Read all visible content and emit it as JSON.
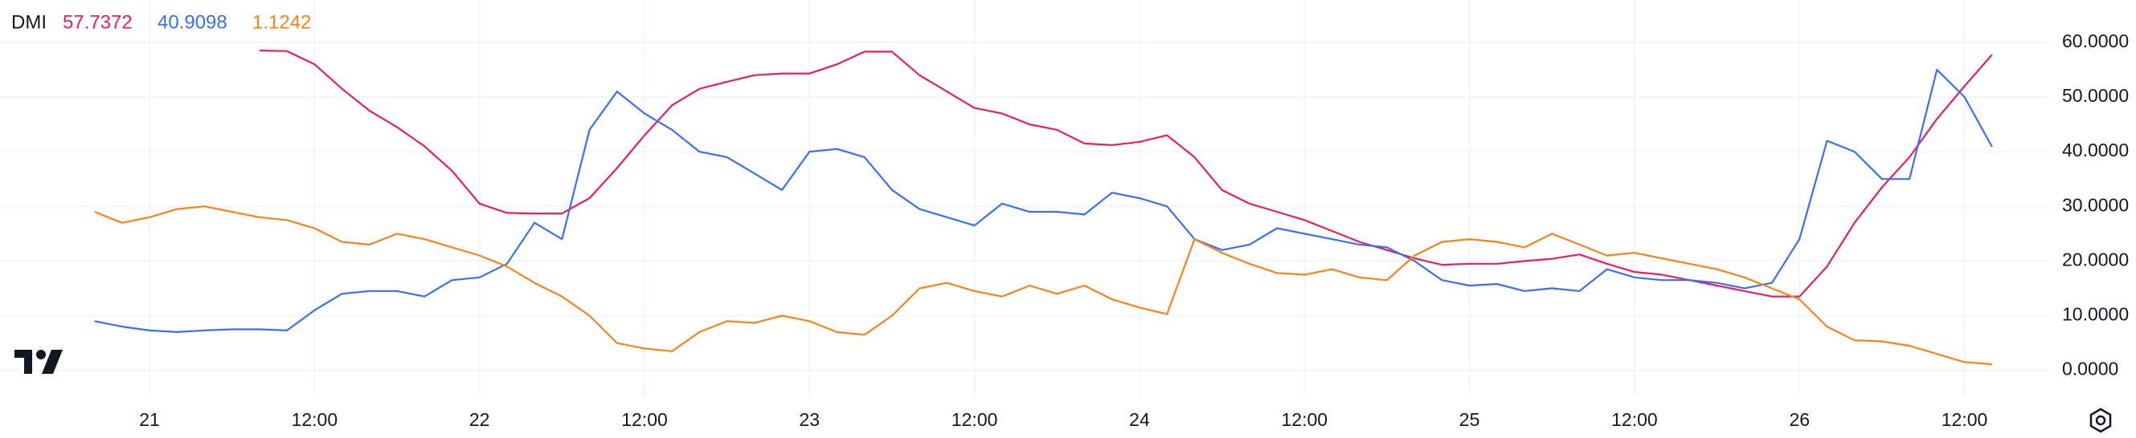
{
  "chart_data": {
    "type": "line",
    "title": "DMI",
    "categories": [
      null,
      null,
      "21",
      null,
      null,
      null,
      null,
      null,
      "12:00",
      null,
      null,
      null,
      null,
      null,
      "22",
      null,
      null,
      null,
      null,
      null,
      "12:00",
      null,
      null,
      null,
      null,
      null,
      "23",
      null,
      null,
      null,
      null,
      null,
      "12:00",
      null,
      null,
      null,
      null,
      null,
      "24",
      null,
      null,
      null,
      null,
      null,
      "12:00",
      null,
      null,
      null,
      null,
      null,
      "25",
      null,
      null,
      null,
      null,
      null,
      "12:00",
      null,
      null,
      null,
      null,
      null,
      "26",
      null,
      null,
      null,
      null,
      null,
      "12:00",
      null
    ],
    "series": [
      {
        "color": "#e91e63",
        "values": [
          null,
          null,
          null,
          null,
          null,
          null,
          58.5,
          58.4,
          56,
          51.5,
          47.5,
          44.5,
          41,
          36.5,
          30.5,
          28.8,
          28.7,
          28.7,
          31.5,
          37,
          43,
          48.5,
          51.5,
          52.8,
          54,
          54.3,
          54.3,
          56,
          58.3,
          58.3,
          54,
          51,
          48,
          47,
          45,
          44,
          41.5,
          41.2,
          41.8,
          43,
          39,
          33,
          30.5,
          29,
          27.5,
          25.5,
          23.5,
          22,
          20.5,
          19.3,
          19.5,
          19.5,
          20,
          20.4,
          21.2,
          19.5,
          18,
          17.5,
          16.5,
          15.5,
          14.5,
          13.5,
          13.5,
          19,
          27,
          33.5,
          39,
          46,
          52,
          57.7372
        ]
      },
      {
        "color": "#3b6ff0",
        "values": [
          9,
          8,
          7.3,
          7,
          7.3,
          7.5,
          7.5,
          7.3,
          11,
          14,
          14.5,
          14.5,
          13.5,
          16.5,
          17,
          19.5,
          27,
          24,
          44,
          51,
          47,
          44,
          40,
          39,
          36,
          33,
          40,
          40.5,
          39,
          33,
          29.5,
          28,
          26.5,
          30.5,
          29,
          29,
          28.5,
          32.5,
          31.5,
          30,
          24,
          22,
          23,
          26,
          25,
          24,
          23,
          22.5,
          20,
          16.5,
          15.5,
          15.8,
          14.5,
          15,
          14.5,
          18.5,
          17,
          16.5,
          16.5,
          16,
          15,
          16,
          24,
          42,
          40,
          35,
          35,
          55,
          50,
          40.9098
        ]
      },
      {
        "color": "#f7841b",
        "values": [
          29,
          27,
          28,
          29.5,
          30,
          29,
          28,
          27.5,
          26,
          23.5,
          23,
          25,
          24,
          22.5,
          21,
          19,
          16,
          13.5,
          10,
          5,
          4,
          3.5,
          7,
          9,
          8.7,
          10,
          9,
          7,
          6.5,
          10,
          15,
          16,
          14.5,
          13.5,
          15.5,
          14,
          15.5,
          13,
          11.5,
          10.3,
          24,
          21.5,
          19.5,
          17.8,
          17.5,
          18.5,
          17,
          16.5,
          21,
          23.5,
          24,
          23.5,
          22.5,
          25,
          23,
          21,
          21.5,
          20.5,
          19.5,
          18.5,
          17,
          15,
          13,
          8,
          5.5,
          5.3,
          4.5,
          3,
          1.5,
          1.1242
        ]
      }
    ],
    "ylim": [
      -4.75,
      67.75
    ],
    "yticks": [
      {
        "value": 0,
        "label": "0.0000"
      },
      {
        "value": 10,
        "label": "10.0000"
      },
      {
        "value": 20,
        "label": "20.0000"
      },
      {
        "value": 30,
        "label": "30.0000"
      },
      {
        "value": 40,
        "label": "40.0000"
      },
      {
        "value": 50,
        "label": "50.0000"
      },
      {
        "value": 60,
        "label": "60.0000"
      }
    ],
    "grid": true
  }
}
